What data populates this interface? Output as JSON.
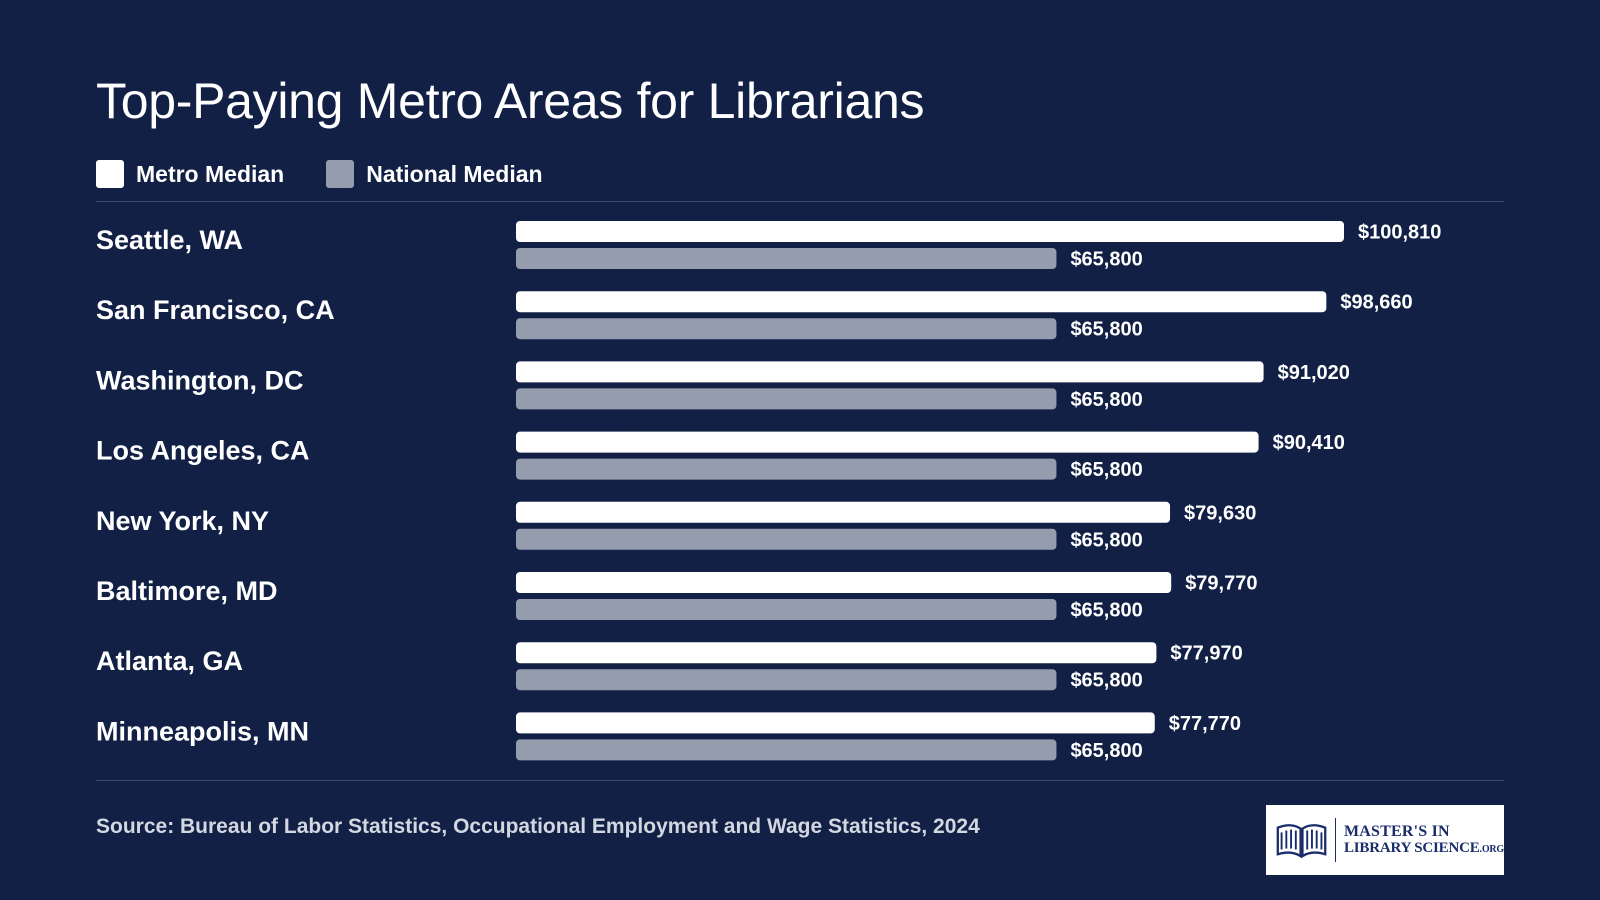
{
  "page": {
    "title": "Top-Paying Metro Areas for Librarians",
    "source": "Source: Bureau of Labor Statistics, Occupational Employment and Wage Statistics, 2024"
  },
  "legend": {
    "metro": "Metro Median",
    "national": "National Median"
  },
  "logo": {
    "line1": "MASTER'S IN",
    "line2": "LIBRARY SCIENCE",
    "suffix": ".ORG"
  },
  "colors": {
    "background": "#122046",
    "metro": "#ffffff",
    "national": "#959cad"
  },
  "chart_data": {
    "type": "bar",
    "orientation": "horizontal",
    "title": "Top-Paying Metro Areas for Librarians",
    "categories": [
      "Seattle, WA",
      "San Francisco, CA",
      "Washington, DC",
      "Los Angeles, CA",
      "New York, NY",
      "Baltimore, MD",
      "Atlanta, GA",
      "Minneapolis, MN"
    ],
    "series": [
      {
        "name": "Metro Median",
        "values": [
          100810,
          98660,
          91020,
          90410,
          79630,
          79770,
          77970,
          77770
        ],
        "labels": [
          "$100,810",
          "$98,660",
          "$91,020",
          "$90,410",
          "$79,630",
          "$79,770",
          "$77,970",
          "$77,770"
        ]
      },
      {
        "name": "National Median",
        "values": [
          65800,
          65800,
          65800,
          65800,
          65800,
          65800,
          65800,
          65800
        ],
        "labels": [
          "$65,800",
          "$65,800",
          "$65,800",
          "$65,800",
          "$65,800",
          "$65,800",
          "$65,800",
          "$65,800"
        ]
      }
    ],
    "xlim": [
      0,
      100810
    ],
    "grid": false,
    "legend_position": "top-left"
  }
}
